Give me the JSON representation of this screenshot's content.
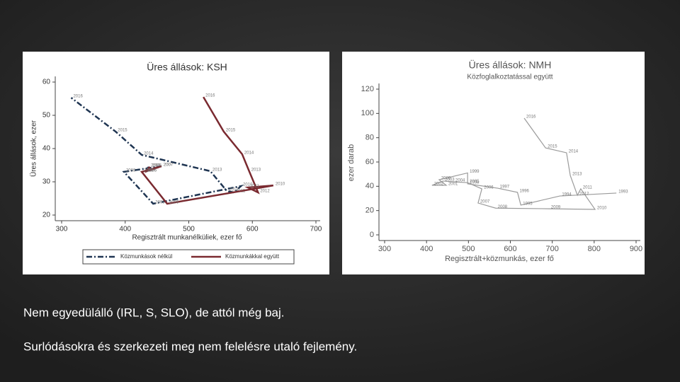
{
  "chart_data": [
    {
      "type": "line",
      "title": "Üres állások: KSH",
      "xlabel": "Regisztrált munkanélküliek, ezer fő",
      "ylabel": "Üres állások, ezer",
      "xlim": [
        300,
        700
      ],
      "xticks": [
        300,
        400,
        500,
        600,
        700
      ],
      "ylim": [
        20,
        60
      ],
      "yticks": [
        20,
        30,
        40,
        50,
        60
      ],
      "legend": "bottom",
      "series": [
        {
          "name": "Közmunkások nélkül",
          "color": "#1f3552",
          "line_style": "dashdot",
          "labels": [
            "2005",
            "2006",
            "2007",
            "2008",
            "2009",
            "2010",
            "2011",
            "2012",
            "2013",
            "2014",
            "2015",
            "2016"
          ],
          "x": [
            437,
            431,
            457,
            398,
            444,
            582,
            571,
            560,
            534,
            426,
            385,
            315
          ],
          "values": [
            34.5,
            33,
            34.7,
            33,
            23.4,
            28.7,
            26.8,
            27.2,
            33.2,
            38.1,
            45.1,
            55.3
          ]
        },
        {
          "name": "Közmunkákkal együtt",
          "color": "#7a2a30",
          "line_style": "solid",
          "labels": [
            "2005",
            "2006",
            "2007",
            "2008",
            "2009",
            "2010",
            "2011",
            "2012",
            "2013",
            "2014",
            "2015",
            "2016"
          ],
          "x": [
            439,
            431,
            457,
            426,
            466,
            633,
            593,
            609,
            595,
            584,
            555,
            523
          ],
          "values": [
            34.5,
            33,
            34.7,
            33,
            23.4,
            28.9,
            28.3,
            26.8,
            33.2,
            38.3,
            45.1,
            55.5
          ]
        }
      ]
    },
    {
      "type": "line",
      "title": "Üres állások: NMH",
      "subtitle": "Közfoglalkoztatással együtt",
      "xlabel": "Regisztrált+közmunkás, ezer fő",
      "ylabel": "ezer darab",
      "xlim": [
        300,
        900
      ],
      "xticks": [
        300,
        400,
        500,
        600,
        700,
        800,
        900
      ],
      "ylim": [
        0,
        120
      ],
      "yticks": [
        0,
        20,
        40,
        60,
        80,
        100,
        120
      ],
      "series": [
        {
          "color": "#9a9a9a",
          "line_style": "solid",
          "labels": [
            "1993",
            "1994",
            "1995",
            "1996",
            "1997",
            "1998",
            "1999",
            "2000",
            "2001",
            "2002",
            "2003",
            "2004",
            "2005",
            "2006",
            "2007",
            "2008",
            "2009",
            "2010",
            "2011",
            "2012",
            "2013",
            "2014",
            "2015",
            "2016"
          ],
          "x": [
            853,
            718,
            625,
            617,
            570,
            498,
            498,
            430,
            447,
            413,
            439,
            464,
            498,
            532,
            523,
            565,
            692,
            802,
            768,
            760,
            743,
            734,
            684,
            633
          ],
          "values": [
            34.4,
            32,
            24.5,
            35,
            38.4,
            42,
            51,
            45.4,
            40.8,
            40.8,
            44.3,
            43.7,
            43,
            37.9,
            26.2,
            22,
            21.5,
            21,
            37.9,
            32.6,
            48.9,
            67.6,
            71.6,
            96.1
          ]
        }
      ]
    }
  ],
  "notes": [
    "Nem egyedülálló (IRL, S, SLO), de attól még baj.",
    "Surlódásokra és szerkezeti meg nem felelésre utaló fejlemény."
  ]
}
